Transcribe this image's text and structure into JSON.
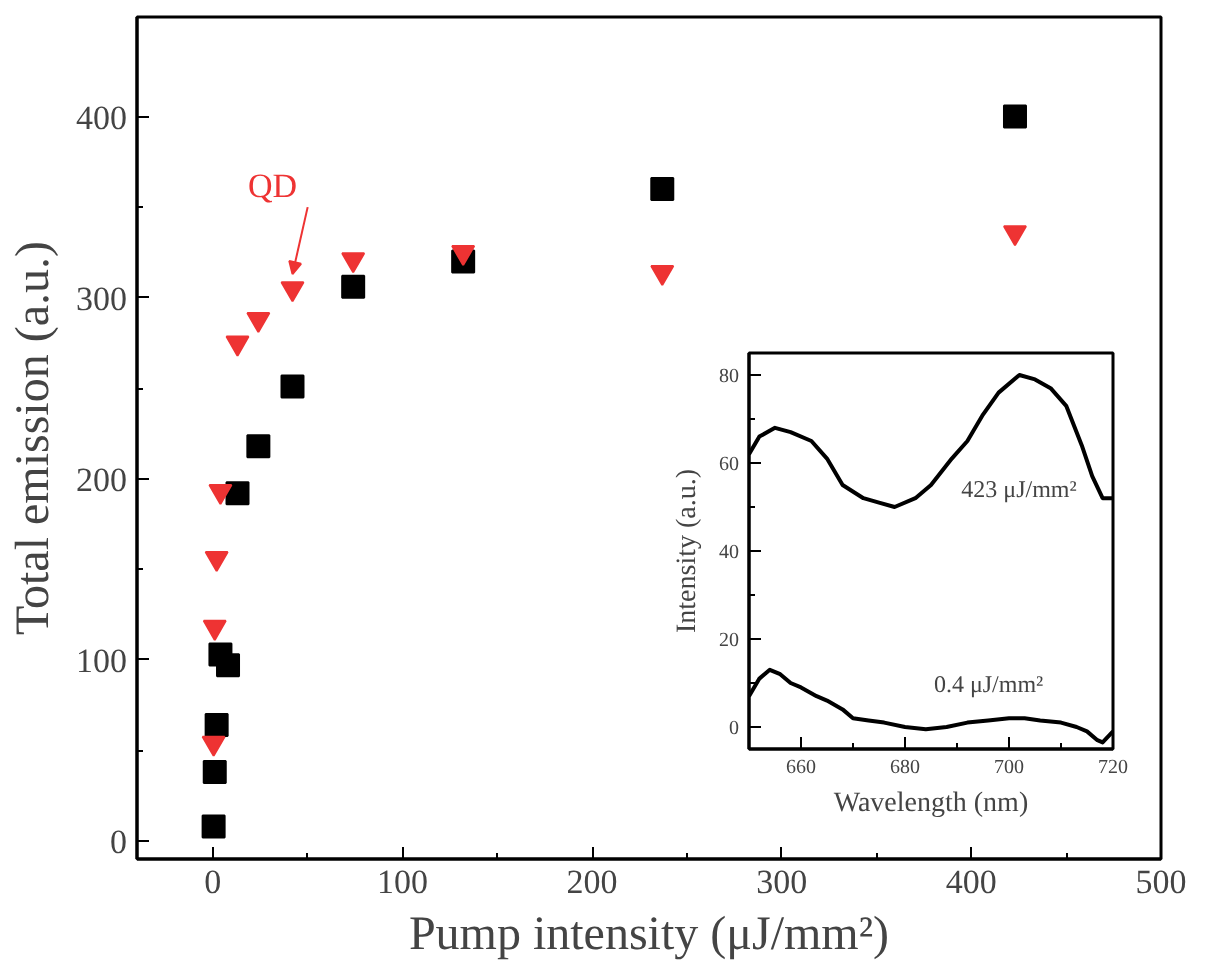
{
  "chart_data": [
    {
      "type": "scatter",
      "xlabel": "Pump intensity (μJ/mm²)",
      "ylabel": "Total emission (a.u.)",
      "xlim": [
        -40,
        500
      ],
      "xticks": [
        0,
        100,
        200,
        300,
        400,
        500
      ],
      "ylim": [
        -10,
        455
      ],
      "yticks": [
        0,
        100,
        200,
        300,
        400
      ],
      "grid": false,
      "series": [
        {
          "color": "#000000",
          "marker": "square",
          "x": [
            0.4,
            1,
            2,
            4,
            8,
            13,
            24,
            42,
            74,
            132,
            237,
            423
          ],
          "values": [
            8,
            38,
            64,
            103,
            97,
            192,
            218,
            251,
            306,
            320,
            360,
            400
          ]
        },
        {
          "color": "#ee3333",
          "marker": "triangle",
          "x": [
            0.4,
            1,
            2,
            4,
            13,
            24,
            42,
            74,
            132,
            237,
            423
          ],
          "values": [
            54,
            118,
            156,
            193,
            275,
            288,
            305,
            321,
            325,
            314,
            336
          ]
        }
      ],
      "annotations": [
        {
          "text": "QD",
          "x": 42,
          "y": 305
        }
      ]
    },
    {
      "type": "line",
      "xlabel": "Wavelength (nm)",
      "ylabel": "Intensity (a.u.)",
      "xlim": [
        650,
        720
      ],
      "xticks": [
        660,
        680,
        700,
        720
      ],
      "ylim": [
        -5,
        85
      ],
      "yticks": [
        0,
        20,
        40,
        60,
        80
      ],
      "grid": false,
      "series": [
        {
          "name": "423 μJ/mm²",
          "color": "#000000",
          "x": [
            650,
            652,
            655,
            658,
            662,
            665,
            668,
            672,
            675,
            678,
            682,
            685,
            689,
            692,
            695,
            698,
            702,
            705,
            708,
            711,
            714,
            716,
            718,
            720
          ],
          "values": [
            62,
            66,
            68,
            67,
            65,
            61,
            55,
            52,
            51,
            50,
            52,
            55,
            61,
            65,
            71,
            76,
            80,
            79,
            77,
            73,
            64,
            57,
            52,
            52
          ]
        },
        {
          "name": "0.4 μJ/mm²",
          "color": "#000000",
          "x": [
            650,
            652,
            654,
            656,
            658,
            660,
            663,
            665,
            668,
            670,
            673,
            676,
            680,
            684,
            688,
            692,
            696,
            700,
            703,
            706,
            710,
            713,
            715,
            717,
            718,
            720
          ],
          "values": [
            7,
            11,
            13,
            12,
            10,
            9,
            7,
            6,
            4,
            2,
            1.5,
            1,
            0,
            -0.5,
            0,
            1,
            1.5,
            2,
            2,
            1.5,
            1,
            0,
            -1,
            -3,
            -3.5,
            -1
          ]
        }
      ]
    }
  ]
}
